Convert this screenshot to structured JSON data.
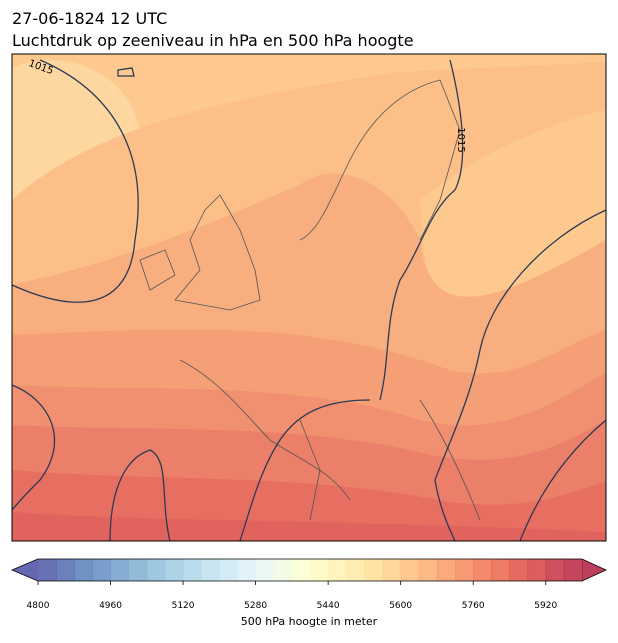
{
  "title": "27-06-1824 12 UTC",
  "subtitle": "Luchtdruk op zeeniveau in hPa en 500 hPa hoogte",
  "contour_labels": [
    "1015",
    "1015"
  ],
  "colorbar": {
    "label": "500 hPa hoogte in meter",
    "clim": [
      4800,
      6000
    ],
    "step": 40,
    "ticks": [
      4800,
      4960,
      5120,
      5280,
      5440,
      5600,
      5760,
      5920
    ],
    "colors": [
      "#313695",
      "#4575b4",
      "#74add1",
      "#abd9e9",
      "#e0f3f8",
      "#ffffbf",
      "#fee090",
      "#fdae61",
      "#f46d43",
      "#d73027",
      "#a50026"
    ]
  }
}
